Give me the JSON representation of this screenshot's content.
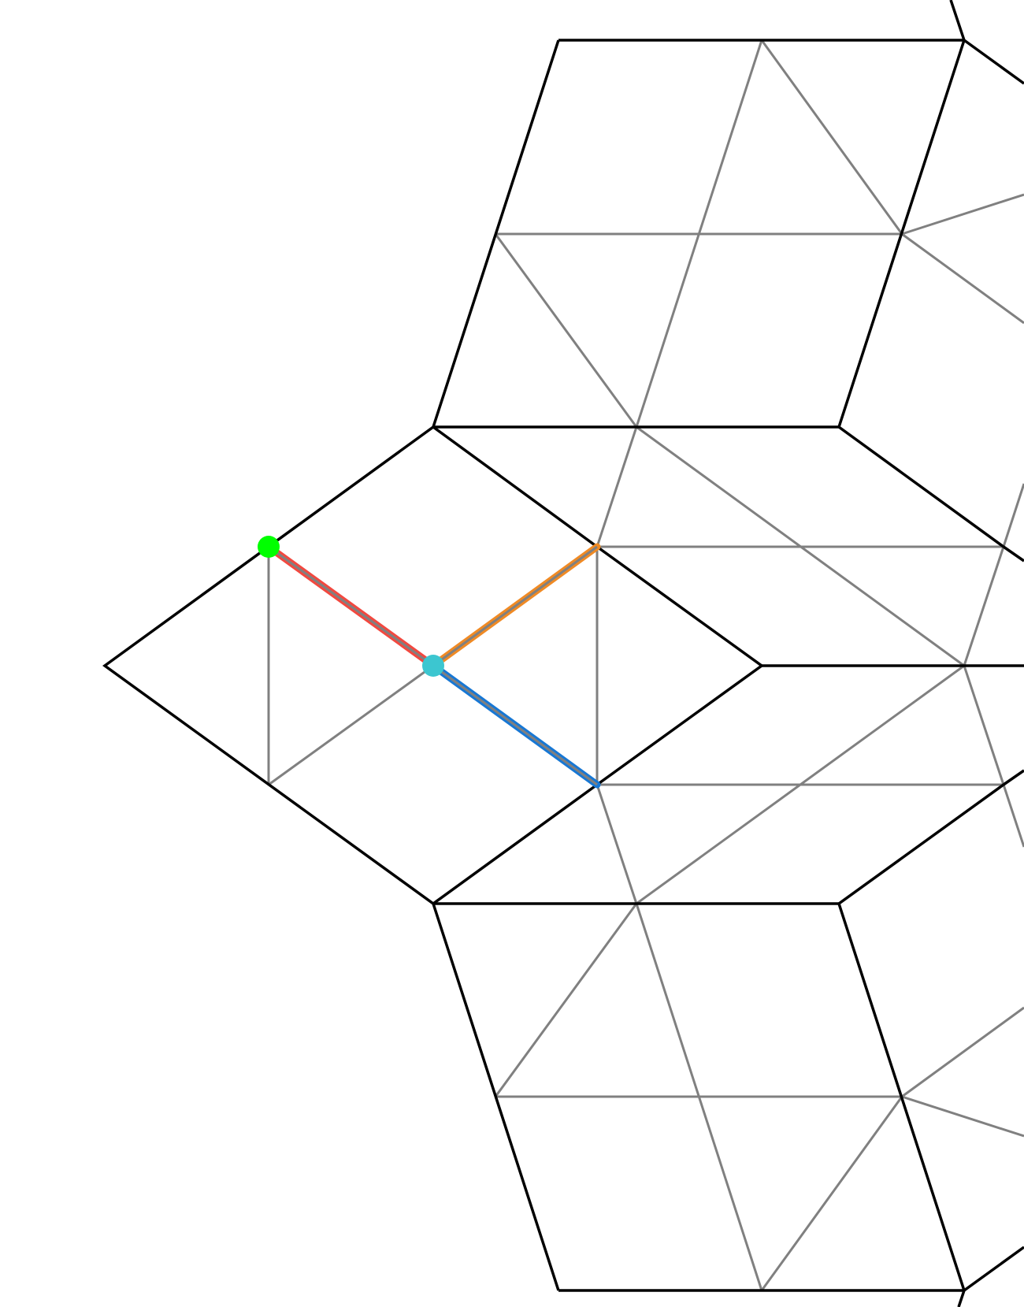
{
  "diagram": {
    "type": "penrose rhombus tiling (partial) with highlighted edges",
    "highlighted_edges": [
      {
        "name": "red-edge",
        "color": "#f2483f"
      },
      {
        "name": "orange-edge",
        "color": "#f08a24"
      },
      {
        "name": "blue-edge",
        "color": "#1777d4"
      }
    ],
    "nodes": [
      {
        "name": "green-node",
        "color": "#00ff00"
      },
      {
        "name": "cyan-node",
        "color": "#3cc6d0"
      }
    ]
  }
}
